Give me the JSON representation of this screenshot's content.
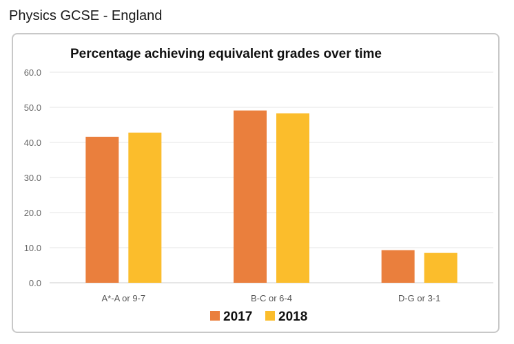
{
  "page": {
    "heading": "Physics GCSE - England"
  },
  "chart_data": {
    "type": "bar",
    "title": "Percentage achieving equivalent grades over time",
    "categories": [
      "A*-A or 9-7",
      "B-C or 6-4",
      "D-G or 3-1"
    ],
    "series": [
      {
        "name": "2017",
        "values": [
          41.6,
          49.1,
          9.3
        ],
        "color": "#ea7f3d"
      },
      {
        "name": "2018",
        "values": [
          42.8,
          48.3,
          8.5
        ],
        "color": "#fbbd2c"
      }
    ],
    "xlabel": "",
    "ylabel": "",
    "ylim": [
      0,
      60
    ],
    "yticks": [
      "0.0",
      "10.0",
      "20.0",
      "30.0",
      "40.0",
      "50.0",
      "60.0"
    ],
    "grid": true,
    "legend_position": "bottom"
  }
}
